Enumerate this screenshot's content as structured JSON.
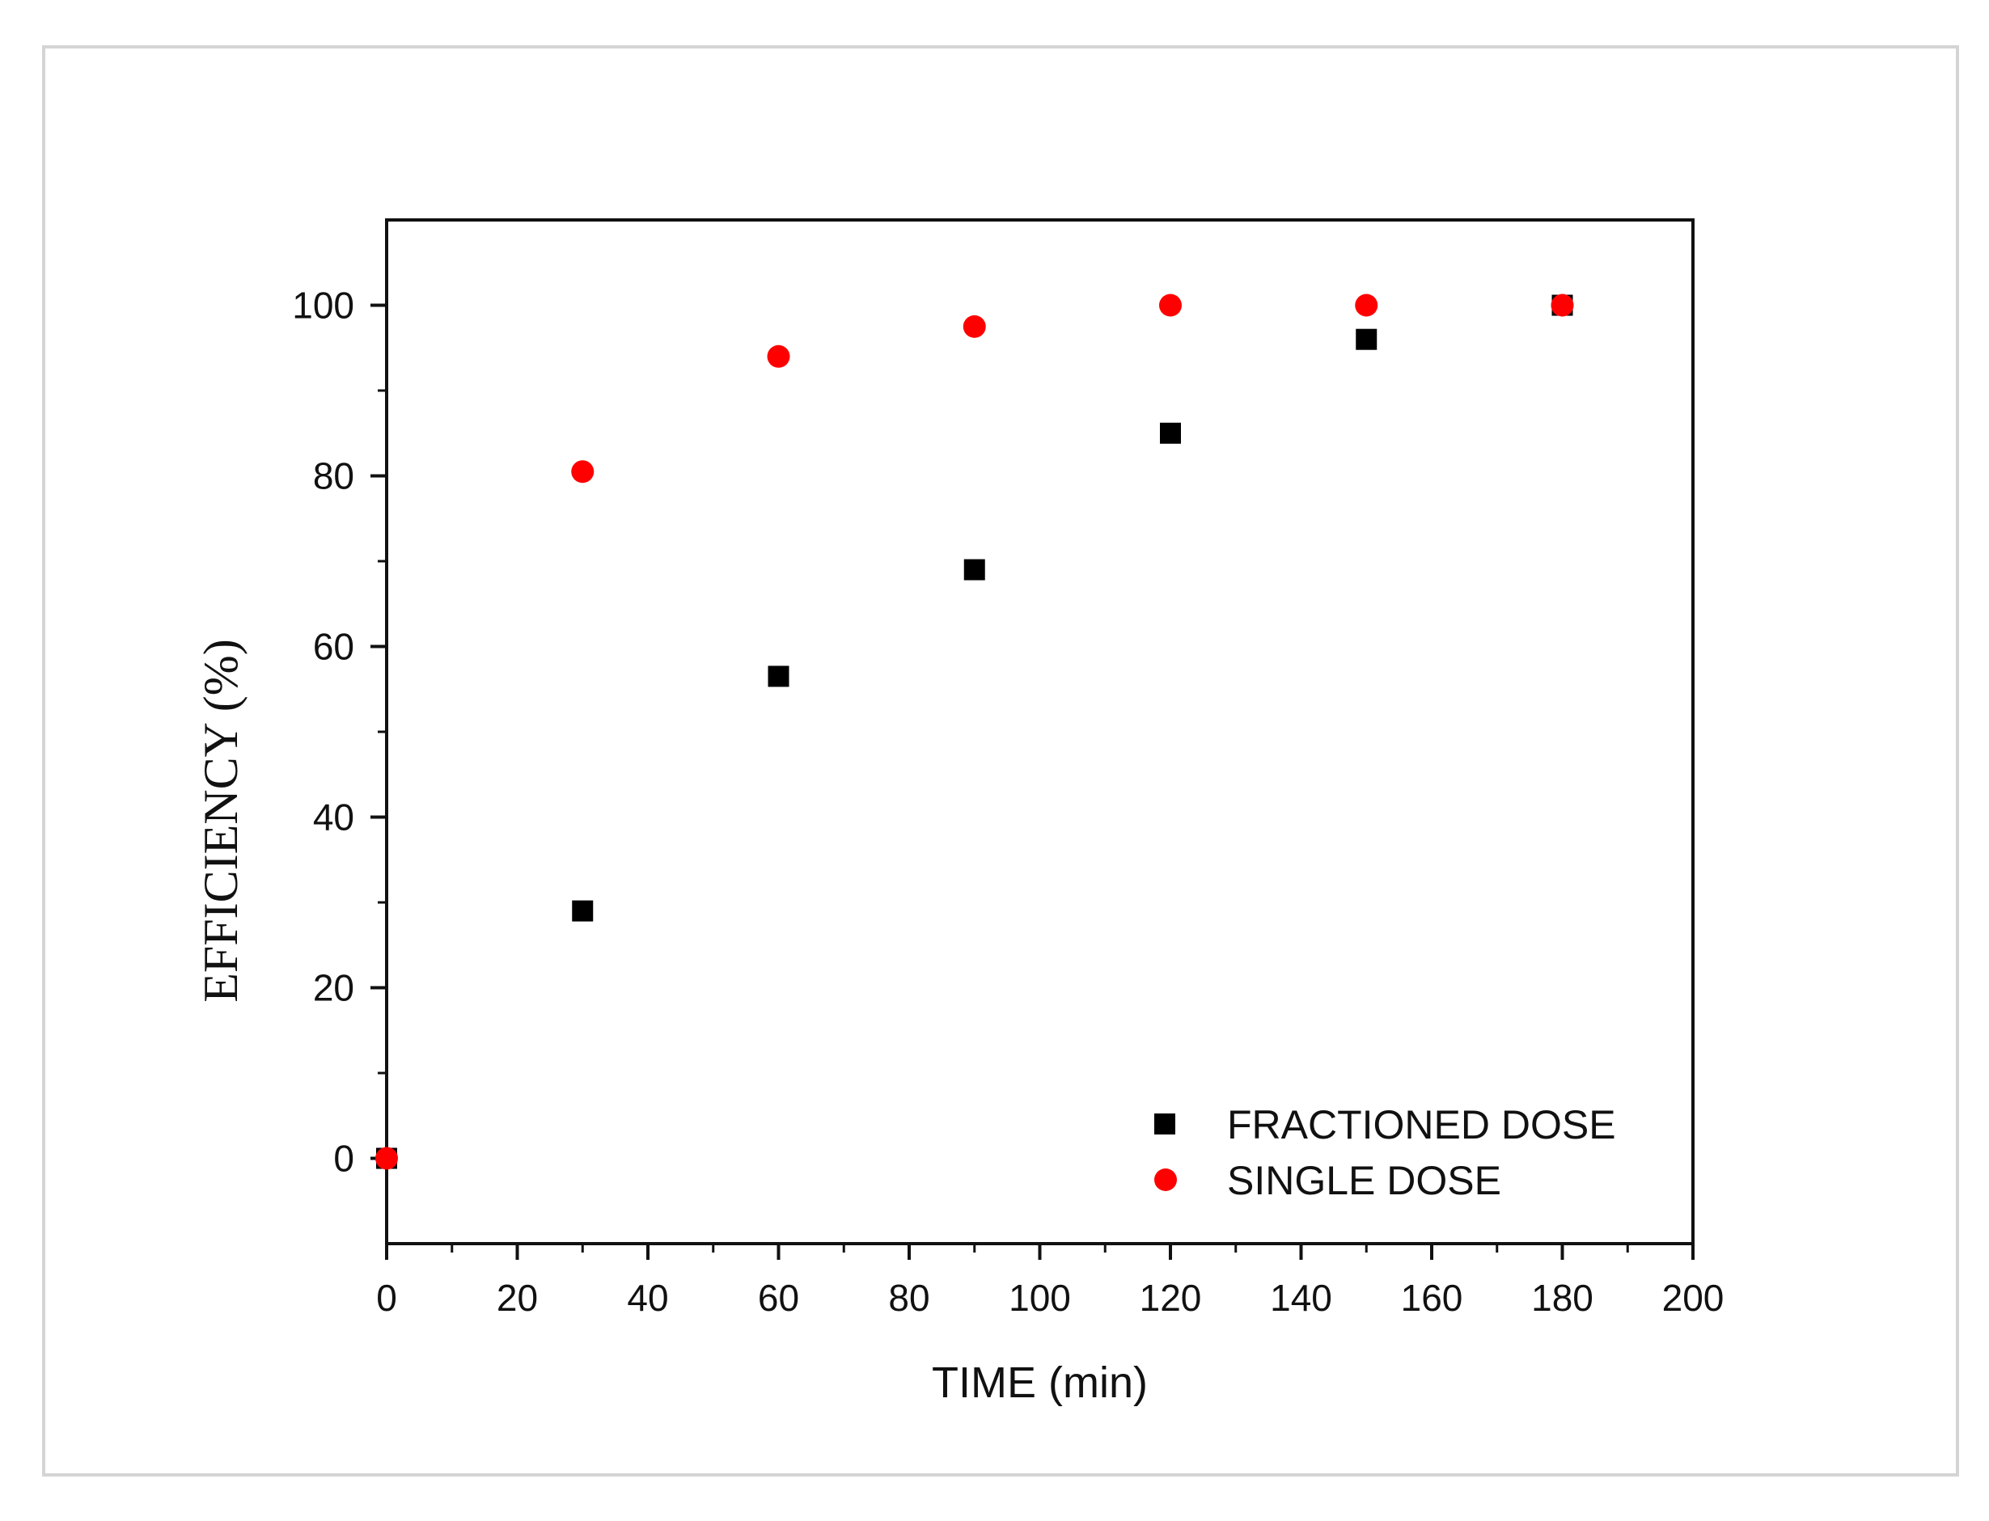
{
  "chart_data": {
    "type": "scatter",
    "title": "",
    "xlabel": "TIME (min)",
    "ylabel": "EFFICIENCY (%)",
    "xlim": [
      0,
      200
    ],
    "ylim": [
      -10,
      110
    ],
    "xticks": [
      0,
      20,
      40,
      60,
      80,
      100,
      120,
      140,
      160,
      180,
      200
    ],
    "yticks": [
      0,
      20,
      40,
      60,
      80,
      100
    ],
    "grid": false,
    "legend_position": "bottom-right",
    "series": [
      {
        "name": "FRACTIONED DOSE",
        "marker": "square",
        "color": "#000000",
        "x": [
          0,
          30,
          60,
          90,
          120,
          150,
          180
        ],
        "y": [
          0,
          29,
          56.5,
          69,
          85,
          96,
          100
        ]
      },
      {
        "name": "SINGLE DOSE",
        "marker": "circle",
        "color": "#ff0000",
        "x": [
          0,
          30,
          60,
          90,
          120,
          150,
          180
        ],
        "y": [
          0,
          80.5,
          94,
          97.5,
          100,
          100,
          100
        ]
      }
    ]
  }
}
